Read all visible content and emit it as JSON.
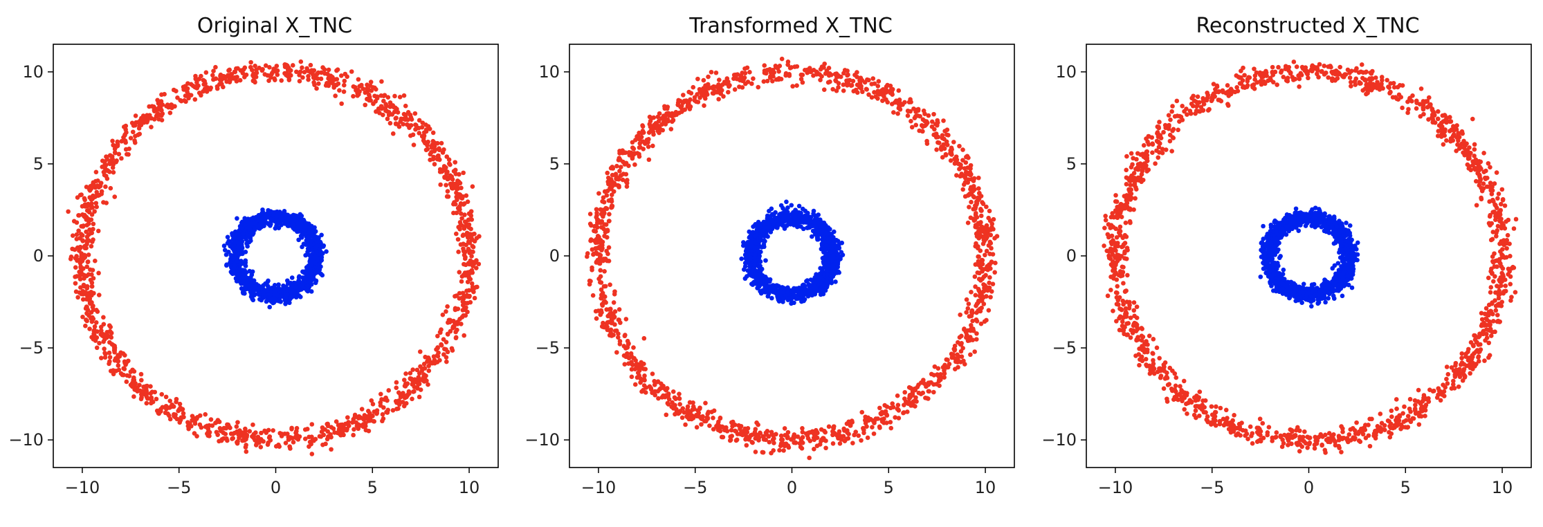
{
  "figure": {
    "tick_label_format": "unicode-minus"
  },
  "chart_data": [
    {
      "type": "scatter",
      "title": "Original X_TNC",
      "xlabel": "",
      "ylabel": "",
      "xlim": [
        -11.5,
        11.5
      ],
      "ylim": [
        -11.5,
        11.5
      ],
      "xticks": [
        -10,
        -5,
        0,
        5,
        10
      ],
      "yticks": [
        -10,
        -5,
        0,
        5,
        10
      ],
      "grid": false,
      "legend": false,
      "series": [
        {
          "color": "#ee3322",
          "shape": "ring",
          "radius": 10.0,
          "spread": 0.3,
          "angle_offset": 0.0,
          "n_points": 1500
        },
        {
          "color": "#0022ee",
          "shape": "ring",
          "radius": 2.1,
          "spread": 0.23,
          "angle_offset": 0.0,
          "n_points": 1200
        }
      ]
    },
    {
      "type": "scatter",
      "title": "Transformed X_TNC",
      "xlabel": "",
      "ylabel": "",
      "xlim": [
        -11.5,
        11.5
      ],
      "ylim": [
        -11.5,
        11.5
      ],
      "xticks": [
        -10,
        -5,
        0,
        5,
        10
      ],
      "yticks": [
        -10,
        -5,
        0,
        5,
        10
      ],
      "grid": false,
      "legend": false,
      "series": [
        {
          "color": "#ee3322",
          "shape": "ring",
          "radius": 10.0,
          "spread": 0.3,
          "angle_offset": 0.03,
          "n_points": 1500
        },
        {
          "color": "#0022ee",
          "shape": "ring",
          "radius": 2.1,
          "spread": 0.23,
          "angle_offset": 0.03,
          "n_points": 1200
        }
      ]
    },
    {
      "type": "scatter",
      "title": "Reconstructed X_TNC",
      "xlabel": "",
      "ylabel": "",
      "xlim": [
        -11.5,
        11.5
      ],
      "ylim": [
        -11.5,
        11.5
      ],
      "xticks": [
        -10,
        -5,
        0,
        5,
        10
      ],
      "yticks": [
        -10,
        -5,
        0,
        5,
        10
      ],
      "grid": false,
      "legend": false,
      "series": [
        {
          "color": "#ee3322",
          "shape": "ring",
          "radius": 10.0,
          "spread": 0.3,
          "angle_offset": 0.0,
          "n_points": 1500
        },
        {
          "color": "#0022ee",
          "shape": "ring",
          "radius": 2.1,
          "spread": 0.23,
          "angle_offset": 0.0,
          "n_points": 1200
        }
      ]
    }
  ]
}
